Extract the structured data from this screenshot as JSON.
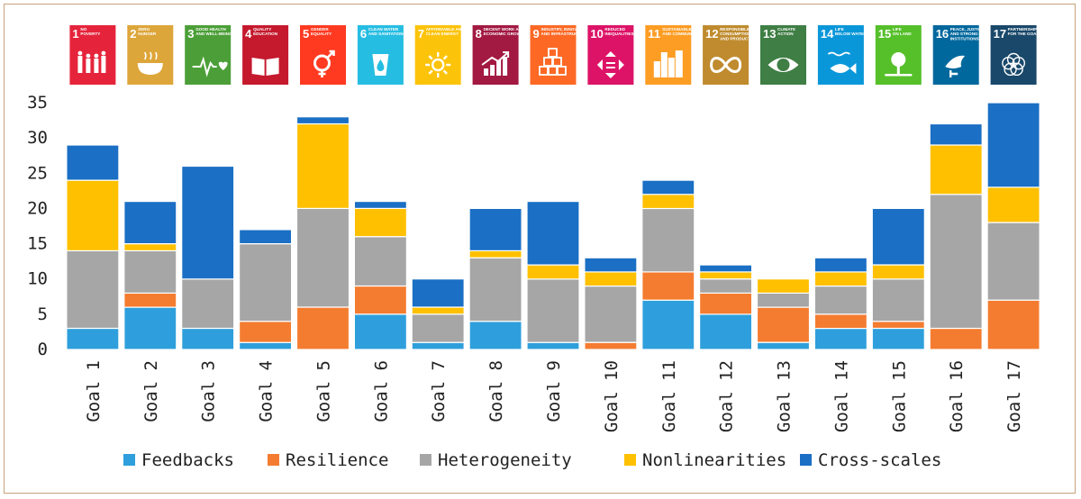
{
  "chart_data": {
    "type": "bar",
    "stacked": true,
    "categories": [
      "Goal 1",
      "Goal 2",
      "Goal 3",
      "Goal 4",
      "Goal 5",
      "Goal 6",
      "Goal 7",
      "Goal 8",
      "Goal 9",
      "Goal 10",
      "Goal 11",
      "Goal 12",
      "Goal 13",
      "Goal 14",
      "Goal 15",
      "Goal 16",
      "Goal 17"
    ],
    "series": [
      {
        "name": "Feedbacks",
        "color": "#2e9fdc",
        "values": [
          3,
          6,
          3,
          1,
          0,
          5,
          1,
          4,
          1,
          0,
          7,
          5,
          1,
          3,
          3,
          0,
          0
        ]
      },
      {
        "name": "Resilience",
        "color": "#f47c30",
        "values": [
          0,
          2,
          0,
          3,
          6,
          4,
          0,
          0,
          0,
          1,
          4,
          3,
          5,
          2,
          1,
          3,
          7
        ]
      },
      {
        "name": "Heterogeneity",
        "color": "#a6a6a6",
        "values": [
          11,
          6,
          7,
          11,
          14,
          7,
          4,
          9,
          9,
          8,
          9,
          2,
          2,
          4,
          6,
          19,
          11
        ]
      },
      {
        "name": "Nonlinearities",
        "color": "#ffc000",
        "values": [
          10,
          1,
          0,
          0,
          12,
          4,
          1,
          1,
          2,
          2,
          2,
          1,
          2,
          2,
          2,
          7,
          5
        ]
      },
      {
        "name": "Cross-scales",
        "color": "#1b6fc4",
        "values": [
          5,
          6,
          16,
          2,
          1,
          1,
          4,
          6,
          9,
          2,
          2,
          1,
          0,
          2,
          8,
          3,
          12
        ]
      }
    ],
    "ylim": [
      0,
      35
    ],
    "yticks": [
      "0",
      "5",
      "10",
      "15",
      "20",
      "25",
      "30",
      "35"
    ],
    "legend_position": "bottom",
    "grid": false,
    "xlabel": "",
    "ylabel": ""
  },
  "sdg_icons": [
    {
      "num": "1",
      "lines": [
        "NO",
        "POVERTY"
      ],
      "color": "#e5243b",
      "icon": "family-icon"
    },
    {
      "num": "2",
      "lines": [
        "ZERO",
        "HUNGER"
      ],
      "color": "#dda63a",
      "icon": "bowl-icon"
    },
    {
      "num": "3",
      "lines": [
        "GOOD HEALTH",
        "AND WELL-BEING"
      ],
      "color": "#4c9f38",
      "icon": "heartbeat-icon"
    },
    {
      "num": "4",
      "lines": [
        "QUALITY",
        "EDUCATION"
      ],
      "color": "#c5192d",
      "icon": "book-icon"
    },
    {
      "num": "5",
      "lines": [
        "GENDER",
        "EQUALITY"
      ],
      "color": "#ff3a21",
      "icon": "gender-icon"
    },
    {
      "num": "6",
      "lines": [
        "CLEAN WATER",
        "AND SANITATION"
      ],
      "color": "#26bde2",
      "icon": "water-icon"
    },
    {
      "num": "7",
      "lines": [
        "AFFORDABLE AND",
        "CLEAN ENERGY"
      ],
      "color": "#fcc30b",
      "icon": "sun-icon"
    },
    {
      "num": "8",
      "lines": [
        "DECENT WORK AND",
        "ECONOMIC GROWTH"
      ],
      "color": "#a21942",
      "icon": "growth-chart-icon"
    },
    {
      "num": "9",
      "lines": [
        "INDUSTRY, INNOVATION",
        "AND INFRASTRUCTURE"
      ],
      "color": "#fd6925",
      "icon": "cubes-icon"
    },
    {
      "num": "10",
      "lines": [
        "REDUCED",
        "INEQUALITIES"
      ],
      "color": "#dd1367",
      "icon": "arrows-icon"
    },
    {
      "num": "11",
      "lines": [
        "SUSTAINABLE CITIES",
        "AND COMMUNITIES"
      ],
      "color": "#fd9d24",
      "icon": "city-icon"
    },
    {
      "num": "12",
      "lines": [
        "RESPONSIBLE",
        "CONSUMPTION",
        "AND PRODUCTION"
      ],
      "color": "#bf8b2e",
      "icon": "infinity-icon"
    },
    {
      "num": "13",
      "lines": [
        "CLIMATE",
        "ACTION"
      ],
      "color": "#3f7e44",
      "icon": "eye-globe-icon"
    },
    {
      "num": "14",
      "lines": [
        "LIFE",
        "BELOW WATER"
      ],
      "color": "#0a97d9",
      "icon": "fish-icon"
    },
    {
      "num": "15",
      "lines": [
        "LIFE",
        "ON LAND"
      ],
      "color": "#56c02b",
      "icon": "tree-icon"
    },
    {
      "num": "16",
      "lines": [
        "PEACE, JUSTICE",
        "AND STRONG",
        "INSTITUTIONS"
      ],
      "color": "#00689d",
      "icon": "dove-icon"
    },
    {
      "num": "17",
      "lines": [
        "PARTNERSHIPS",
        "FOR THE GOALS"
      ],
      "color": "#19486a",
      "icon": "rings-icon"
    }
  ]
}
